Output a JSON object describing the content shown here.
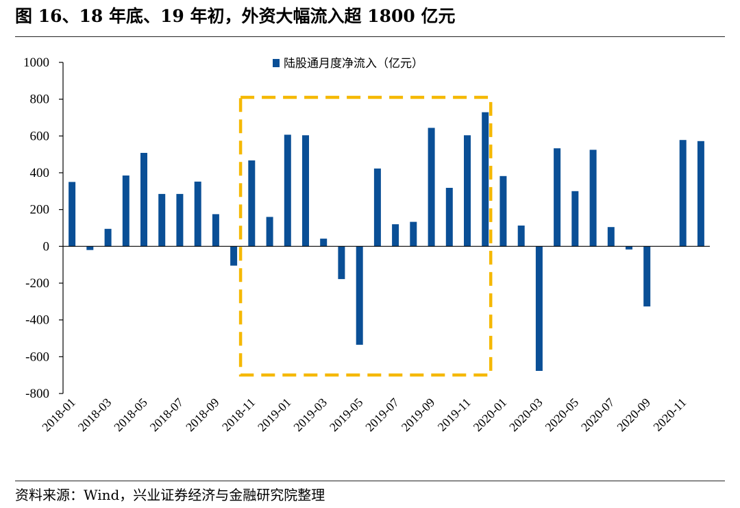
{
  "header": {
    "title": "图 16、18 年底、19 年初，外资大幅流入超 1800 亿元"
  },
  "footer": {
    "source": "资料来源：Wind，兴业证券经济与金融研究院整理"
  },
  "colors": {
    "bar": "#0a4f96",
    "highlight": "#f5b800",
    "axis": "#000000"
  },
  "chart_data": {
    "type": "bar",
    "series": [
      {
        "name": "陆股通月度净流入（亿元）",
        "values": [
          350,
          -20,
          95,
          385,
          508,
          285,
          285,
          352,
          175,
          -105,
          467,
          160,
          607,
          604,
          42,
          -178,
          -535,
          423,
          120,
          133,
          644,
          318,
          604,
          729,
          382,
          113,
          -677,
          533,
          300,
          525,
          105,
          -17,
          -327,
          0,
          578,
          572
        ]
      }
    ],
    "categories": [
      "2018-01",
      "2018-02",
      "2018-03",
      "2018-04",
      "2018-05",
      "2018-06",
      "2018-07",
      "2018-08",
      "2018-09",
      "2018-10",
      "2018-11",
      "2018-12",
      "2019-01",
      "2019-02",
      "2019-03",
      "2019-04",
      "2019-05",
      "2019-06",
      "2019-07",
      "2019-08",
      "2019-09",
      "2019-10",
      "2019-11",
      "2019-12",
      "2020-01",
      "2020-02",
      "2020-03",
      "2020-04",
      "2020-05",
      "2020-06",
      "2020-07",
      "2020-08",
      "2020-09",
      "2020-10",
      "2020-11",
      "2020-12"
    ],
    "x_tick_labels": [
      "2018-01",
      "2018-03",
      "2018-05",
      "2018-07",
      "2018-09",
      "2018-11",
      "2019-01",
      "2019-03",
      "2019-05",
      "2019-07",
      "2019-09",
      "2019-11",
      "2020-01",
      "2020-03",
      "2020-05",
      "2020-07",
      "2020-09",
      "2020-11"
    ],
    "y_tick_labels": [
      "1000",
      "800",
      "600",
      "400",
      "200",
      "0",
      "-200",
      "-400",
      "-600",
      "-800"
    ],
    "ylim": [
      -800,
      1000
    ],
    "legend_position": "top-center",
    "grid": false,
    "highlight_range": [
      "2018-10",
      "2019-12"
    ]
  }
}
